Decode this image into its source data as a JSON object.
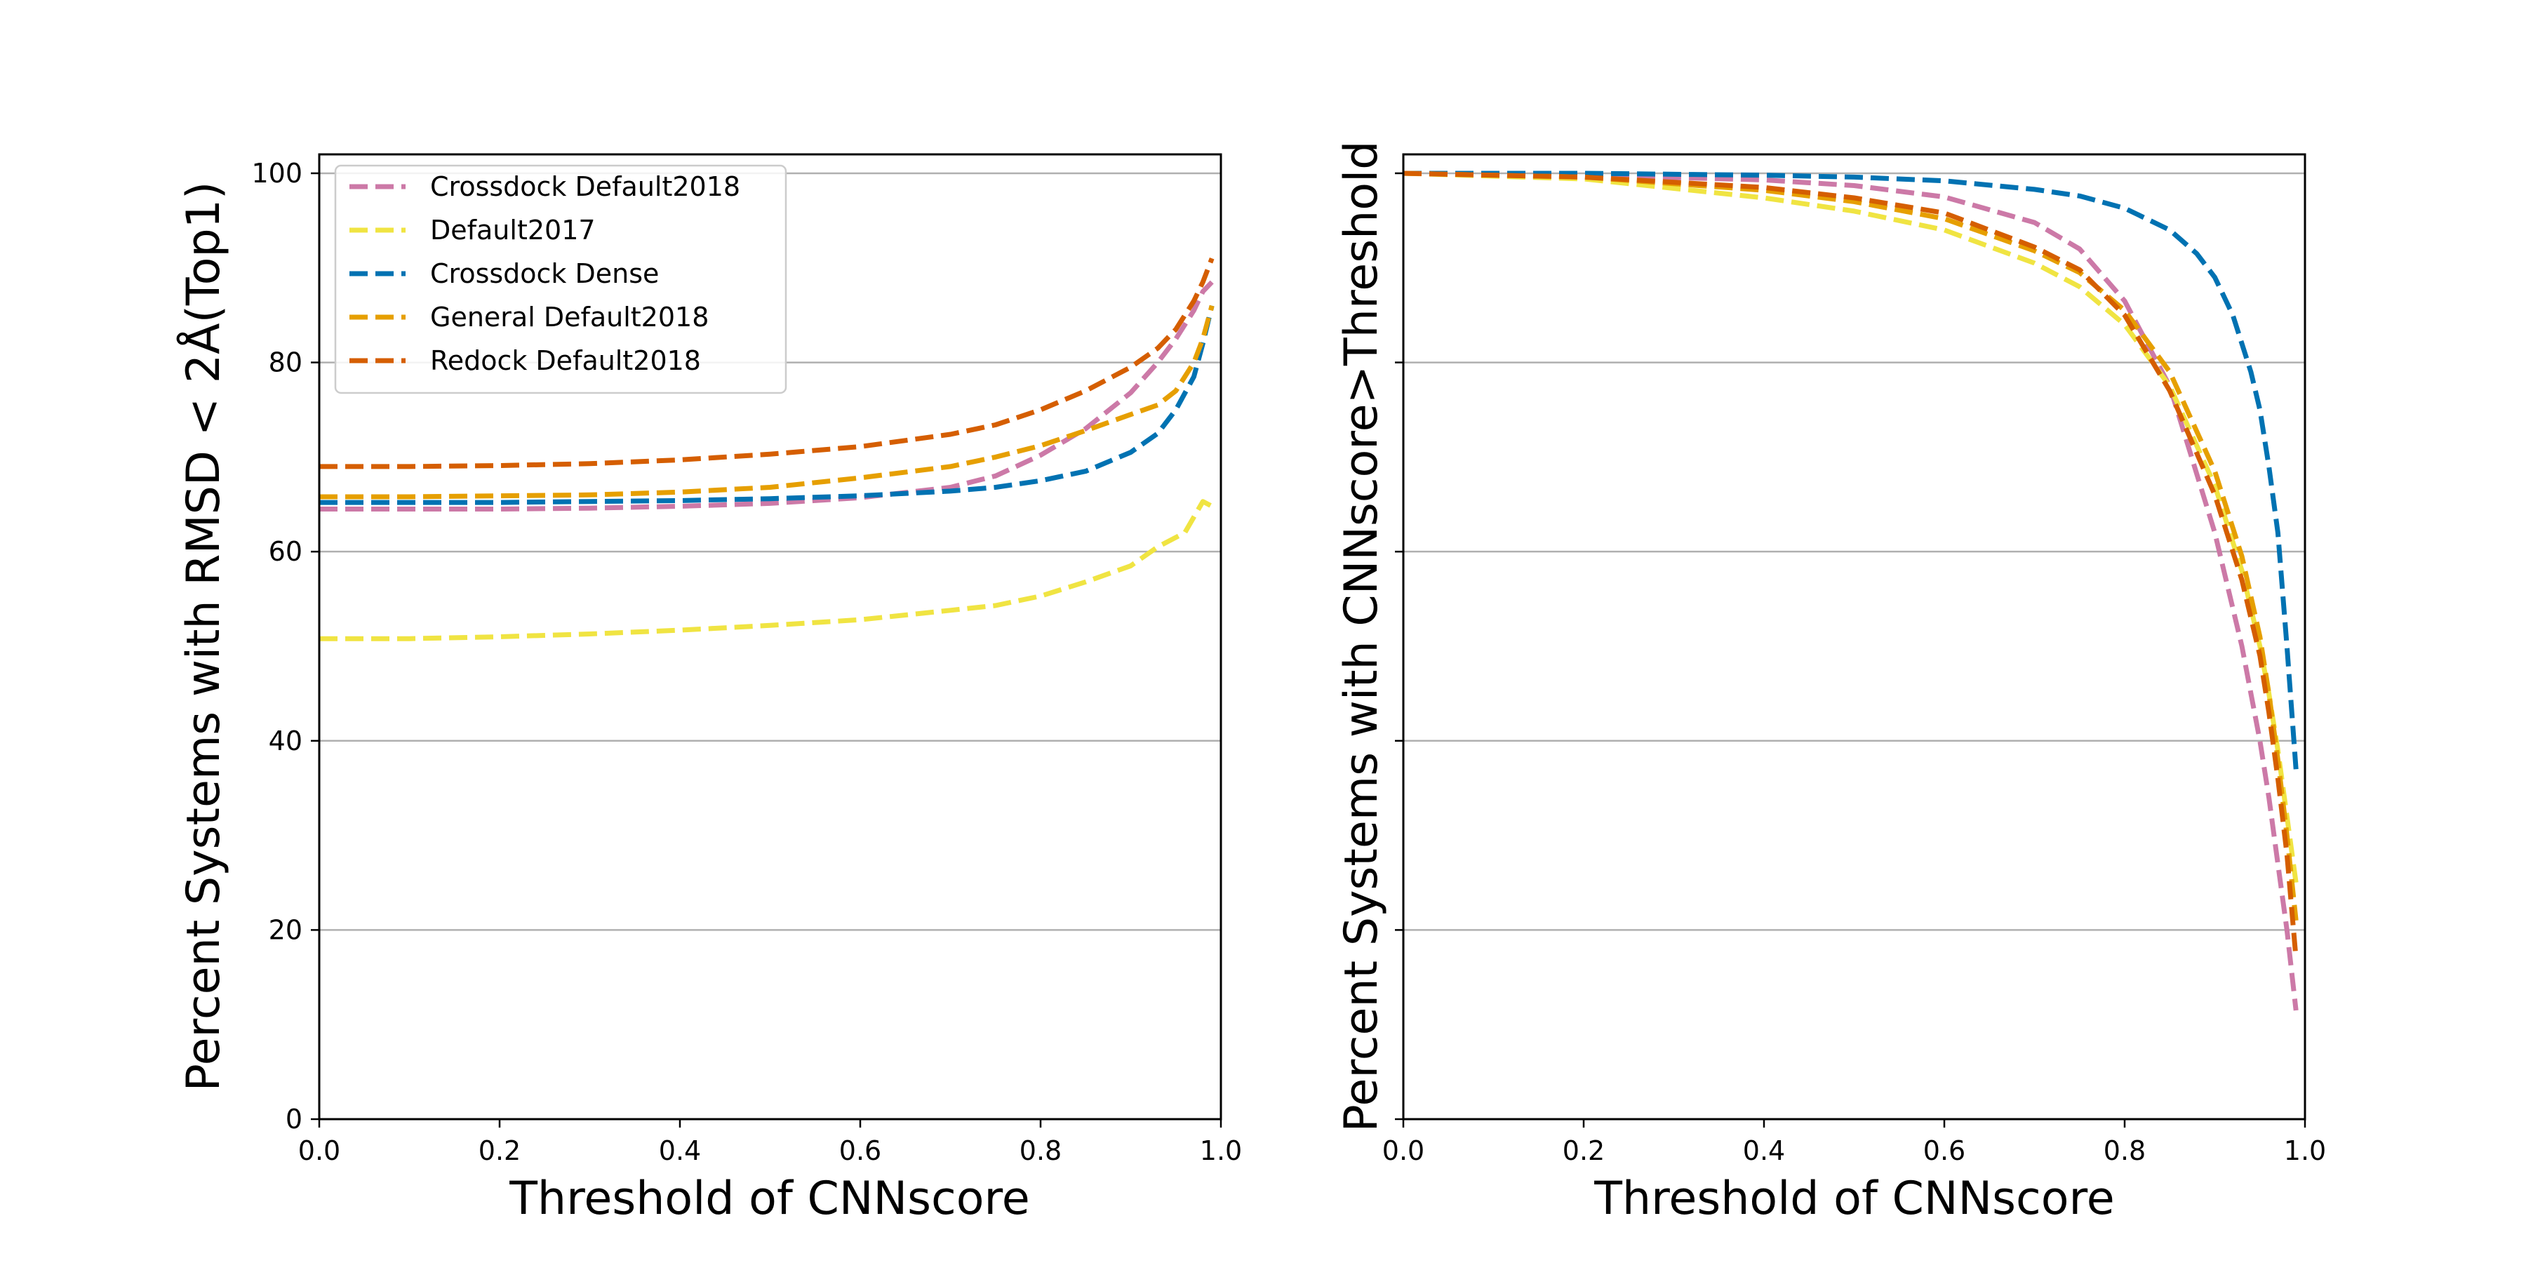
{
  "chart_data": [
    {
      "type": "line",
      "xlabel": "Threshold of CNNscore",
      "ylabel": "Percent Systems with RMSD < 2Å(Top1)",
      "xlim": [
        0.0,
        1.0
      ],
      "ylim": [
        0,
        102
      ],
      "xticks": [
        "0.0",
        "0.2",
        "0.4",
        "0.6",
        "0.8",
        "1.0"
      ],
      "yticks": [
        "0",
        "20",
        "40",
        "60",
        "80",
        "100"
      ],
      "grid": "horizontal",
      "legend": {
        "placement": "top-left",
        "entries": [
          "Crossdock Default2018",
          "Default2017",
          "Crossdock Dense",
          "General Default2018",
          "Redock Default2018"
        ]
      },
      "series": [
        {
          "name": "Crossdock Default2018",
          "color": "#CC79A7",
          "x": [
            0.0,
            0.1,
            0.2,
            0.3,
            0.4,
            0.5,
            0.6,
            0.7,
            0.75,
            0.8,
            0.85,
            0.9,
            0.93,
            0.95,
            0.97,
            0.98,
            0.99
          ],
          "y": [
            64.5,
            64.5,
            64.5,
            64.6,
            64.8,
            65.1,
            65.7,
            66.8,
            68.0,
            70.2,
            73.0,
            76.8,
            80.0,
            82.5,
            85.5,
            87.5,
            88.5
          ]
        },
        {
          "name": "Default2017",
          "color": "#F0E442",
          "x": [
            0.0,
            0.1,
            0.2,
            0.3,
            0.4,
            0.5,
            0.6,
            0.7,
            0.75,
            0.8,
            0.85,
            0.9,
            0.93,
            0.96,
            0.98,
            0.99
          ],
          "y": [
            50.8,
            50.8,
            51.0,
            51.3,
            51.7,
            52.2,
            52.8,
            53.8,
            54.3,
            55.3,
            56.8,
            58.5,
            60.5,
            62.0,
            65.3,
            64.8
          ]
        },
        {
          "name": "Crossdock Dense",
          "color": "#0072B2",
          "x": [
            0.0,
            0.1,
            0.2,
            0.3,
            0.4,
            0.5,
            0.6,
            0.7,
            0.75,
            0.8,
            0.85,
            0.9,
            0.93,
            0.95,
            0.97,
            0.98,
            0.99
          ],
          "y": [
            65.2,
            65.2,
            65.2,
            65.3,
            65.4,
            65.6,
            65.9,
            66.4,
            66.8,
            67.5,
            68.5,
            70.5,
            72.5,
            75.0,
            78.5,
            82.0,
            86.0
          ]
        },
        {
          "name": "General Default2018",
          "color": "#E69F00",
          "x": [
            0.0,
            0.1,
            0.2,
            0.3,
            0.4,
            0.5,
            0.6,
            0.7,
            0.75,
            0.8,
            0.85,
            0.9,
            0.93,
            0.95,
            0.97,
            0.98,
            0.99
          ],
          "y": [
            65.8,
            65.8,
            65.9,
            66.0,
            66.3,
            66.8,
            67.8,
            69.0,
            70.0,
            71.2,
            72.8,
            74.5,
            75.5,
            77.0,
            80.0,
            82.5,
            86.0
          ]
        },
        {
          "name": "Redock Default2018",
          "color": "#D55E00",
          "x": [
            0.0,
            0.1,
            0.2,
            0.3,
            0.4,
            0.5,
            0.6,
            0.7,
            0.75,
            0.8,
            0.85,
            0.9,
            0.93,
            0.95,
            0.97,
            0.98,
            0.99
          ],
          "y": [
            69.0,
            69.0,
            69.1,
            69.3,
            69.7,
            70.3,
            71.1,
            72.4,
            73.4,
            75.0,
            77.0,
            79.5,
            81.5,
            83.5,
            86.5,
            88.5,
            91.0
          ]
        }
      ]
    },
    {
      "type": "line",
      "xlabel": "Threshold of CNNscore",
      "ylabel": "Percent Systems with CNNscore>Threshold",
      "xlim": [
        0.0,
        1.0
      ],
      "ylim": [
        0,
        102
      ],
      "xticks": [
        "0.0",
        "0.2",
        "0.4",
        "0.6",
        "0.8",
        "1.0"
      ],
      "yticks": [],
      "grid": "horizontal",
      "series": [
        {
          "name": "Crossdock Default2018",
          "color": "#CC79A7",
          "x": [
            0.0,
            0.2,
            0.4,
            0.5,
            0.6,
            0.7,
            0.75,
            0.8,
            0.85,
            0.9,
            0.93,
            0.95,
            0.96,
            0.97,
            0.98,
            0.99
          ],
          "y": [
            100,
            99.8,
            99.3,
            98.7,
            97.5,
            94.8,
            92.0,
            86.5,
            77.5,
            62.0,
            50.0,
            40.0,
            34.0,
            27.0,
            20.0,
            11.5
          ]
        },
        {
          "name": "Default2017",
          "color": "#F0E442",
          "x": [
            0.0,
            0.2,
            0.4,
            0.5,
            0.6,
            0.7,
            0.75,
            0.8,
            0.85,
            0.9,
            0.93,
            0.95,
            0.96,
            0.97,
            0.98,
            0.99
          ],
          "y": [
            100,
            99.4,
            97.4,
            96.0,
            94.0,
            90.5,
            88.0,
            84.0,
            77.5,
            67.0,
            58.0,
            50.0,
            45.0,
            39.0,
            32.0,
            25.0
          ]
        },
        {
          "name": "Crossdock Dense",
          "color": "#0072B2",
          "x": [
            0.0,
            0.2,
            0.4,
            0.5,
            0.6,
            0.7,
            0.75,
            0.8,
            0.85,
            0.88,
            0.9,
            0.92,
            0.94,
            0.95,
            0.96,
            0.97,
            0.98,
            0.99
          ],
          "y": [
            100,
            100,
            99.8,
            99.6,
            99.2,
            98.3,
            97.6,
            96.3,
            94.0,
            91.5,
            89.0,
            85.0,
            79.0,
            75.0,
            69.0,
            62.0,
            50.0,
            37.0
          ]
        },
        {
          "name": "General Default2018",
          "color": "#E69F00",
          "x": [
            0.0,
            0.2,
            0.4,
            0.5,
            0.6,
            0.7,
            0.75,
            0.8,
            0.85,
            0.9,
            0.93,
            0.95,
            0.96,
            0.97,
            0.98,
            0.99
          ],
          "y": [
            100,
            99.6,
            98.2,
            97.0,
            95.2,
            91.8,
            89.5,
            85.5,
            79.0,
            68.5,
            59.5,
            51.0,
            45.0,
            38.0,
            30.0,
            21.0
          ]
        },
        {
          "name": "Redock Default2018",
          "color": "#D55E00",
          "x": [
            0.0,
            0.2,
            0.4,
            0.5,
            0.6,
            0.7,
            0.75,
            0.8,
            0.85,
            0.9,
            0.93,
            0.95,
            0.96,
            0.97,
            0.98,
            0.99
          ],
          "y": [
            100,
            99.6,
            98.5,
            97.4,
            95.8,
            92.2,
            89.8,
            85.0,
            77.0,
            66.0,
            57.0,
            49.0,
            43.0,
            36.0,
            28.0,
            17.0
          ]
        }
      ]
    }
  ]
}
